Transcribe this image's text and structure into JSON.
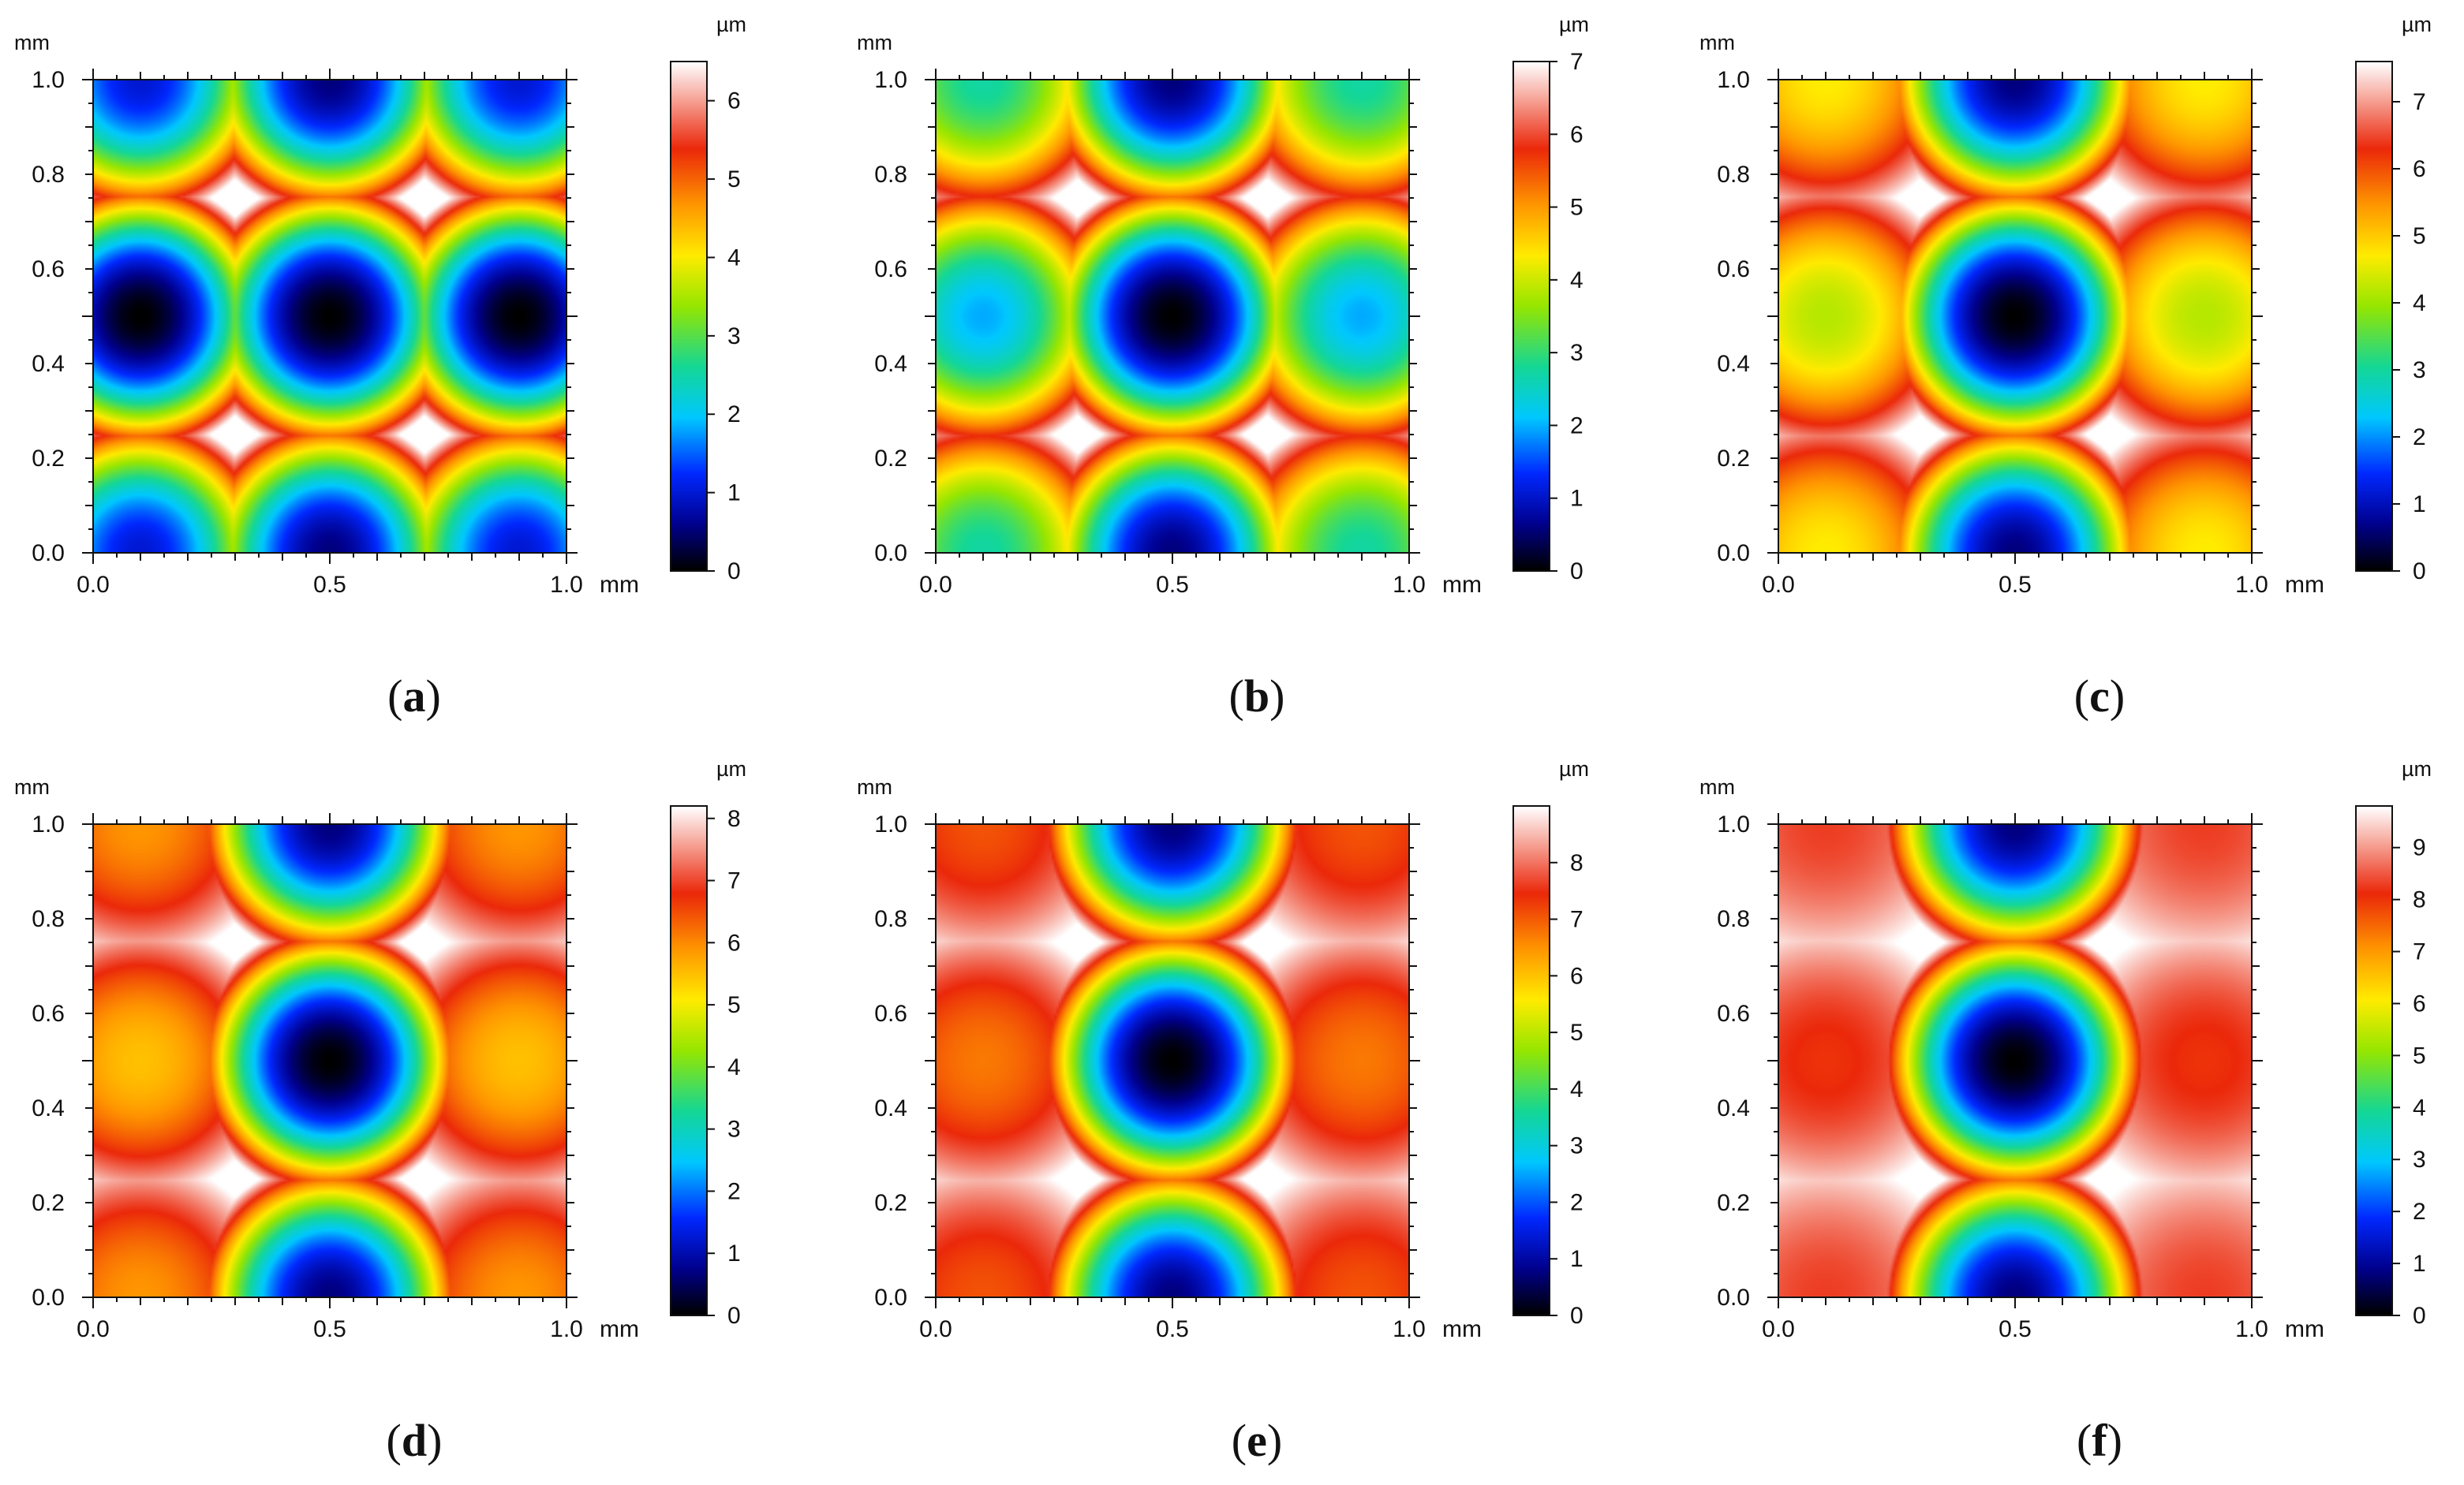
{
  "figure": {
    "chart_data": [
      {
        "type": "heatmap",
        "panel": "a",
        "caption": {
          "open": "(",
          "letter": "a",
          "close": ")"
        },
        "x_unit": "mm",
        "y_unit": "mm",
        "colorbar_unit": "µm",
        "xlim": [
          0.0,
          1.0
        ],
        "ylim": [
          0.0,
          1.0
        ],
        "xticks": [
          "0.0",
          "0.5",
          "1.0"
        ],
        "yticks": [
          "0.0",
          "0.2",
          "0.4",
          "0.6",
          "0.8",
          "1.0"
        ],
        "colorbar_range": [
          0,
          6.5
        ],
        "colorbar_ticks": [
          "0",
          "1",
          "2",
          "3",
          "4",
          "5",
          "6"
        ],
        "pattern": {
          "side_pit_depth": 1.0
        }
      },
      {
        "type": "heatmap",
        "panel": "b",
        "caption": {
          "open": "(",
          "letter": "b",
          "close": ")"
        },
        "x_unit": "mm",
        "y_unit": "mm",
        "colorbar_unit": "µm",
        "xlim": [
          0.0,
          1.0
        ],
        "ylim": [
          0.0,
          1.0
        ],
        "xticks": [
          "0.0",
          "0.5",
          "1.0"
        ],
        "yticks": [
          "0.0",
          "0.2",
          "0.4",
          "0.6",
          "0.8",
          "1.0"
        ],
        "colorbar_range": [
          0,
          7
        ],
        "colorbar_ticks": [
          "0",
          "1",
          "2",
          "3",
          "4",
          "5",
          "6",
          "7"
        ],
        "pattern": {
          "side_pit_depth": 0.72
        }
      },
      {
        "type": "heatmap",
        "panel": "c",
        "caption": {
          "open": "(",
          "letter": "c",
          "close": ")"
        },
        "x_unit": "mm",
        "y_unit": "mm",
        "colorbar_unit": "µm",
        "xlim": [
          0.0,
          1.0
        ],
        "ylim": [
          0.0,
          1.0
        ],
        "xticks": [
          "0.0",
          "0.5",
          "1.0"
        ],
        "yticks": [
          "0.0",
          "0.2",
          "0.4",
          "0.6",
          "0.8",
          "1.0"
        ],
        "colorbar_range": [
          0,
          7.6
        ],
        "colorbar_ticks": [
          "0",
          "1",
          "2",
          "3",
          "4",
          "5",
          "6",
          "7"
        ],
        "pattern": {
          "side_pit_depth": 0.45
        }
      },
      {
        "type": "heatmap",
        "panel": "d",
        "caption": {
          "open": "(",
          "letter": "d",
          "close": ")"
        },
        "x_unit": "mm",
        "y_unit": "mm",
        "colorbar_unit": "µm",
        "xlim": [
          0.0,
          1.0
        ],
        "ylim": [
          0.0,
          1.0
        ],
        "xticks": [
          "0.0",
          "0.5",
          "1.0"
        ],
        "yticks": [
          "0.0",
          "0.2",
          "0.4",
          "0.6",
          "0.8",
          "1.0"
        ],
        "colorbar_range": [
          0,
          8.2
        ],
        "colorbar_ticks": [
          "0",
          "1",
          "2",
          "3",
          "4",
          "5",
          "6",
          "7",
          "8"
        ],
        "pattern": {
          "side_pit_depth": 0.33
        }
      },
      {
        "type": "heatmap",
        "panel": "e",
        "caption": {
          "open": "(",
          "letter": "e",
          "close": ")"
        },
        "x_unit": "mm",
        "y_unit": "mm",
        "colorbar_unit": "µm",
        "xlim": [
          0.0,
          1.0
        ],
        "ylim": [
          0.0,
          1.0
        ],
        "xticks": [
          "0.0",
          "0.5",
          "1.0"
        ],
        "yticks": [
          "0.0",
          "0.2",
          "0.4",
          "0.6",
          "0.8",
          "1.0"
        ],
        "colorbar_range": [
          0,
          9
        ],
        "colorbar_ticks": [
          "0",
          "1",
          "2",
          "3",
          "4",
          "5",
          "6",
          "7",
          "8"
        ],
        "pattern": {
          "side_pit_depth": 0.25
        }
      },
      {
        "type": "heatmap",
        "panel": "f",
        "caption": {
          "open": "(",
          "letter": "f",
          "close": ")"
        },
        "x_unit": "mm",
        "y_unit": "mm",
        "colorbar_unit": "µm",
        "xlim": [
          0.0,
          1.0
        ],
        "ylim": [
          0.0,
          1.0
        ],
        "xticks": [
          "0.0",
          "0.5",
          "1.0"
        ],
        "yticks": [
          "0.0",
          "0.2",
          "0.4",
          "0.6",
          "0.8",
          "1.0"
        ],
        "colorbar_range": [
          0,
          9.8
        ],
        "colorbar_ticks": [
          "0",
          "1",
          "2",
          "3",
          "4",
          "5",
          "6",
          "7",
          "8",
          "9"
        ],
        "pattern": {
          "side_pit_depth": 0.18
        }
      }
    ]
  }
}
